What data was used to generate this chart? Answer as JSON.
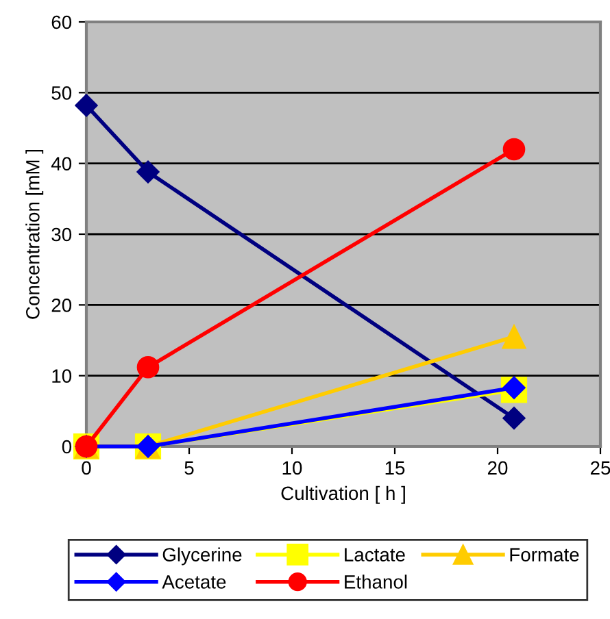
{
  "chart_data": {
    "type": "line",
    "xlabel": "Cultivation [ h ]",
    "ylabel": "Concentration [mM ]",
    "x": [
      0,
      3,
      20.8
    ],
    "series": [
      {
        "name": "Glycerine",
        "color": "#000080",
        "marker": "diamond",
        "values": [
          48.2,
          38.8,
          4
        ]
      },
      {
        "name": "Lactate",
        "color": "#ffff00",
        "marker": "square",
        "values": [
          0,
          0,
          8
        ]
      },
      {
        "name": "Formate",
        "color": "#ffcc00",
        "marker": "triangle",
        "values": [
          0,
          0,
          15.5
        ]
      },
      {
        "name": "Acetate",
        "color": "#0000ff",
        "marker": "diamond",
        "values": [
          0,
          0,
          8.3
        ]
      },
      {
        "name": "Ethanol",
        "color": "#ff0000",
        "marker": "circle",
        "values": [
          0,
          11.2,
          42
        ]
      }
    ],
    "xlim": [
      0,
      25
    ],
    "xticks": [
      0,
      5,
      10,
      15,
      20,
      25
    ],
    "ylim": [
      0,
      60
    ],
    "yticks": [
      0,
      10,
      20,
      30,
      40,
      50,
      60
    ],
    "grid": "y",
    "legend": "bottom",
    "line_style": "solid"
  }
}
